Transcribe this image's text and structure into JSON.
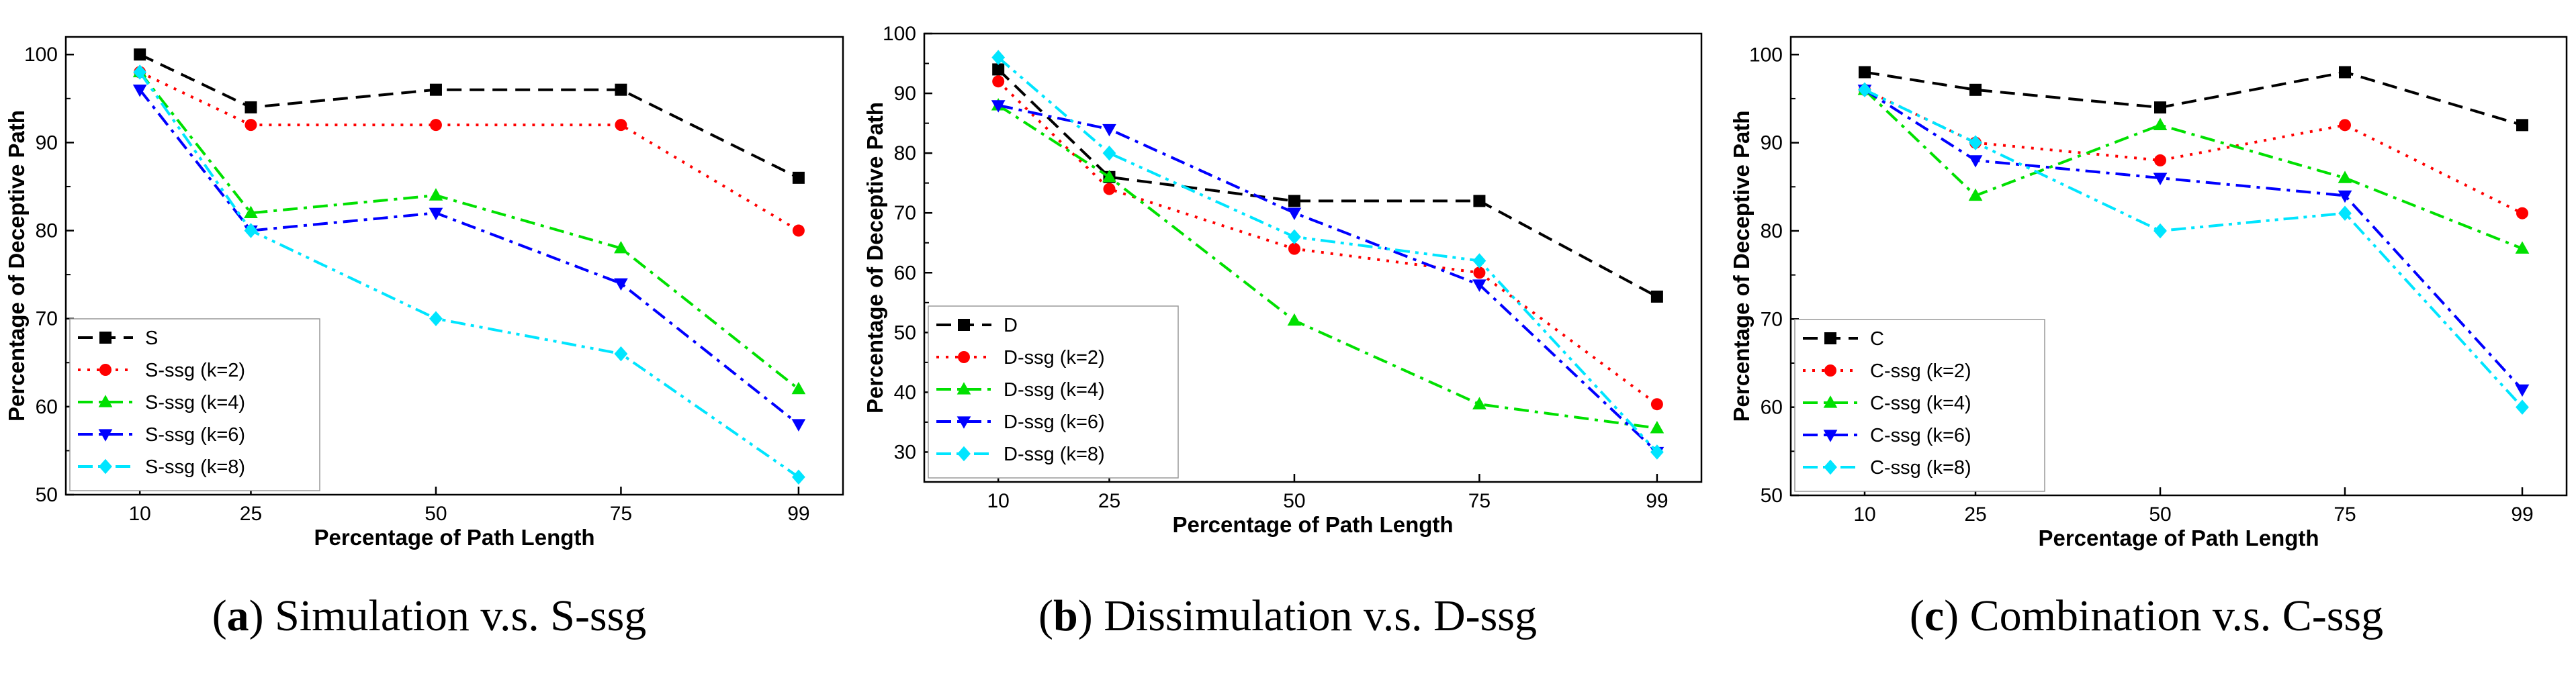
{
  "chart_data": [
    {
      "type": "line",
      "x": [
        10,
        25,
        50,
        75,
        99
      ],
      "xlabel": "Percentage of Path Length",
      "ylabel": "Percentage of Deceptive Path",
      "ylim": [
        50,
        102
      ],
      "yticks": [
        50,
        60,
        70,
        80,
        90,
        100
      ],
      "legend_position": "bottom-left",
      "caption_letter": "a",
      "caption_text": "Simulation v.s. S-ssg",
      "series": [
        {
          "name": "S",
          "color": "#000000",
          "marker": "square",
          "dash": "dash",
          "values": [
            100,
            94,
            96,
            96,
            86
          ]
        },
        {
          "name": "S-ssg (k=2)",
          "color": "#ff0000",
          "marker": "circle",
          "dash": "dot",
          "values": [
            98,
            92,
            92,
            92,
            80
          ]
        },
        {
          "name": "S-ssg (k=4)",
          "color": "#00e000",
          "marker": "triangle-up",
          "dash": "dashdot",
          "values": [
            98,
            82,
            84,
            78,
            62
          ]
        },
        {
          "name": "S-ssg (k=6)",
          "color": "#0000ff",
          "marker": "triangle-down",
          "dash": "dashdot",
          "values": [
            96,
            80,
            82,
            74,
            58
          ]
        },
        {
          "name": "S-ssg (k=8)",
          "color": "#00e5ff",
          "marker": "diamond",
          "dash": "dashdotdot",
          "values": [
            98,
            80,
            70,
            66,
            52
          ]
        }
      ]
    },
    {
      "type": "line",
      "x": [
        10,
        25,
        50,
        75,
        99
      ],
      "xlabel": "Percentage of Path Length",
      "ylabel": "Percentage of Deceptive Path",
      "ylim": [
        25,
        100
      ],
      "yticks": [
        30,
        40,
        50,
        60,
        70,
        80,
        90,
        100
      ],
      "legend_position": "bottom-left",
      "caption_letter": "b",
      "caption_text": "Dissimulation v.s. D-ssg",
      "series": [
        {
          "name": "D",
          "color": "#000000",
          "marker": "square",
          "dash": "dash",
          "values": [
            94,
            76,
            72,
            72,
            56
          ]
        },
        {
          "name": "D-ssg (k=2)",
          "color": "#ff0000",
          "marker": "circle",
          "dash": "dot",
          "values": [
            92,
            74,
            64,
            60,
            38
          ]
        },
        {
          "name": "D-ssg (k=4)",
          "color": "#00e000",
          "marker": "triangle-up",
          "dash": "dashdot",
          "values": [
            88,
            76,
            52,
            38,
            34
          ]
        },
        {
          "name": "D-ssg (k=6)",
          "color": "#0000ff",
          "marker": "triangle-down",
          "dash": "dashdot",
          "values": [
            88,
            84,
            70,
            58,
            30
          ]
        },
        {
          "name": "D-ssg (k=8)",
          "color": "#00e5ff",
          "marker": "diamond",
          "dash": "dashdotdot",
          "values": [
            96,
            80,
            66,
            62,
            30
          ]
        }
      ]
    },
    {
      "type": "line",
      "x": [
        10,
        25,
        50,
        75,
        99
      ],
      "xlabel": "Percentage of Path Length",
      "ylabel": "Percentage of Deceptive Path",
      "ylim": [
        50,
        102
      ],
      "yticks": [
        50,
        60,
        70,
        80,
        90,
        100
      ],
      "legend_position": "bottom-left",
      "caption_letter": "c",
      "caption_text": "Combination v.s. C-ssg",
      "series": [
        {
          "name": "C",
          "color": "#000000",
          "marker": "square",
          "dash": "dash",
          "values": [
            98,
            96,
            94,
            98,
            92
          ]
        },
        {
          "name": "C-ssg (k=2)",
          "color": "#ff0000",
          "marker": "circle",
          "dash": "dot",
          "values": [
            96,
            90,
            88,
            92,
            82
          ]
        },
        {
          "name": "C-ssg (k=4)",
          "color": "#00e000",
          "marker": "triangle-up",
          "dash": "dashdot",
          "values": [
            96,
            84,
            92,
            86,
            78
          ]
        },
        {
          "name": "C-ssg (k=6)",
          "color": "#0000ff",
          "marker": "triangle-down",
          "dash": "dashdot",
          "values": [
            96,
            88,
            86,
            84,
            62
          ]
        },
        {
          "name": "C-ssg (k=8)",
          "color": "#00e5ff",
          "marker": "diamond",
          "dash": "dashdotdot",
          "values": [
            96,
            90,
            80,
            82,
            60
          ]
        }
      ]
    }
  ]
}
